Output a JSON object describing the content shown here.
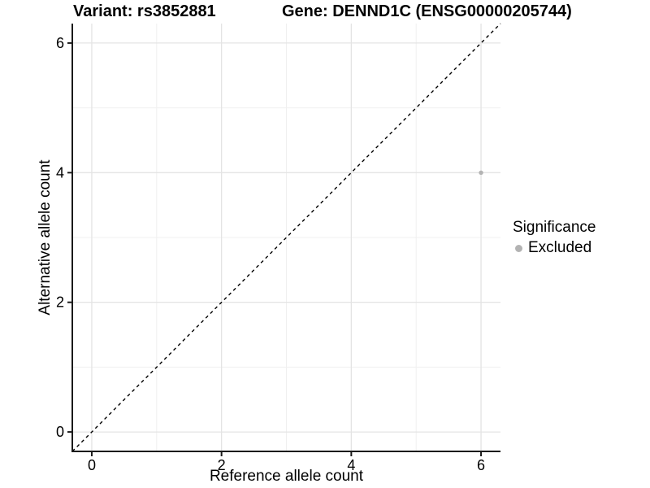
{
  "titles": {
    "variant": "Variant: rs3852881",
    "gene": "Gene: DENND1C (ENSG00000205744)"
  },
  "axes": {
    "x": {
      "label": "Reference allele count",
      "ticks": [
        0,
        2,
        4,
        6
      ],
      "tick_labels": [
        "0",
        "2",
        "4",
        "6"
      ],
      "minor_ticks": [
        1,
        3,
        5
      ],
      "range": [
        -0.3,
        6.3
      ]
    },
    "y": {
      "label": "Alternative allele count",
      "ticks": [
        0,
        2,
        4,
        6
      ],
      "tick_labels": [
        "0",
        "2",
        "4",
        "6"
      ],
      "minor_ticks": [
        1,
        3,
        5
      ],
      "range": [
        -0.3,
        6.3
      ]
    }
  },
  "legend": {
    "title": "Significance",
    "items": [
      {
        "label": "Excluded",
        "color": "#b3b3b3",
        "marker": "dot-icon"
      }
    ]
  },
  "colors": {
    "background": "#ffffff",
    "axis": "#1a1a1a",
    "grid_major": "#e4e4e4",
    "grid_minor": "#f0f0f0",
    "point": "#b3b3b3",
    "reference_line": "#000000",
    "text": "#000000"
  },
  "chart_data": {
    "type": "scatter",
    "title": "Variant: rs3852881 | Gene: DENND1C (ENSG00000205744)",
    "xlabel": "Reference allele count",
    "ylabel": "Alternative allele count",
    "xlim": [
      -0.3,
      6.3
    ],
    "ylim": [
      -0.3,
      6.3
    ],
    "x_ticks": [
      0,
      2,
      4,
      6
    ],
    "y_ticks": [
      0,
      2,
      4,
      6
    ],
    "grid": "on",
    "legend_position": "right",
    "series": [
      {
        "name": "Excluded",
        "color": "#b3b3b3",
        "points": [
          {
            "x": 6,
            "y": 4
          }
        ]
      }
    ],
    "reference_line": {
      "type": "abline",
      "intercept": 0,
      "slope": 1,
      "linestyle": "dashed",
      "color": "#000000"
    }
  }
}
